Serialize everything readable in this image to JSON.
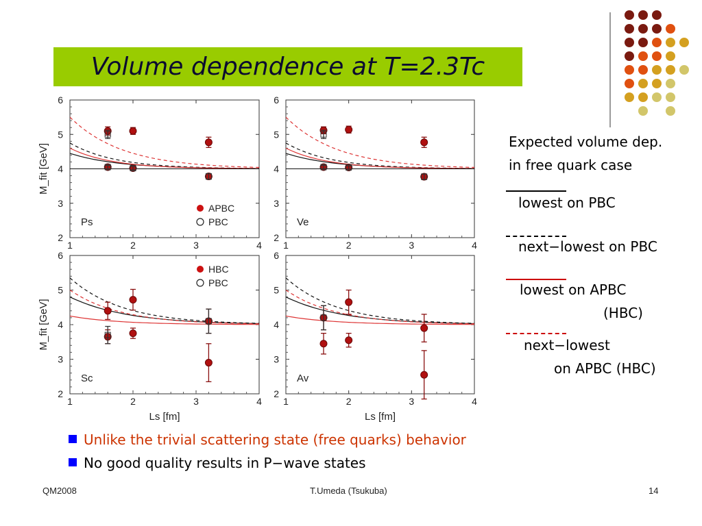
{
  "title": "Volume dependence at T=2.3Tc",
  "legend": {
    "heading_line1": "Expected volume dep.",
    "heading_line2": "in free quark case",
    "items": [
      {
        "dash": "______",
        "label": "lowest on PBC",
        "color": "#000000"
      },
      {
        "dash": "- - - - - -",
        "label": "next−lowest on PBC",
        "color": "#000000"
      },
      {
        "dash": "______",
        "label": "lowest on APBC",
        "label2": "(HBC)",
        "color": "#cc0000"
      },
      {
        "dash": "- - - - - -",
        "label": "next−lowest",
        "label2": "on APBC (HBC)",
        "color": "#cc0000"
      }
    ]
  },
  "bullets": [
    {
      "text": "Unlike the trivial scattering state (free quarks) behavior",
      "color": "#cc3300"
    },
    {
      "text": "No good quality results in P−wave states",
      "color": "#000000"
    }
  ],
  "footer": {
    "left": "QM2008",
    "center": "T.Umeda (Tsukuba)",
    "right": "14"
  },
  "colors": {
    "accent_green": "#99cc00",
    "data_red": "#bb1111",
    "theory_red": "#dd3333"
  },
  "chart_data": [
    {
      "type": "scatter",
      "label": "Ps",
      "xlabel": "",
      "ylabel": "M_fit [GeV]",
      "xlim": [
        1,
        4
      ],
      "ylim": [
        2,
        6
      ],
      "xticks": [
        "1",
        "2",
        "3",
        "4"
      ],
      "yticks": [
        "2",
        "3",
        "4",
        "5",
        "6"
      ],
      "legend": [
        "APBC",
        "PBC"
      ],
      "series": [
        {
          "name": "APBC",
          "marker": "filled",
          "points": [
            [
              1.6,
              5.1,
              0.12
            ],
            [
              1.6,
              4.05,
              0.05
            ],
            [
              2.0,
              5.1,
              0.1
            ],
            [
              2.0,
              4.02,
              0.05
            ],
            [
              3.2,
              4.77,
              0.15
            ],
            [
              3.2,
              3.78,
              0.08
            ]
          ]
        },
        {
          "name": "PBC",
          "marker": "open",
          "points": [
            [
              1.6,
              5.0,
              0.12
            ],
            [
              1.6,
              4.05,
              0.05
            ],
            [
              2.0,
              4.02,
              0.05
            ],
            [
              3.2,
              3.78,
              0.08
            ]
          ]
        }
      ]
    },
    {
      "type": "scatter",
      "label": "Ve",
      "xlabel": "",
      "ylabel": "",
      "xlim": [
        1,
        4
      ],
      "ylim": [
        2,
        6
      ],
      "xticks": [
        "1",
        "2",
        "3",
        "4"
      ],
      "yticks": [
        "2",
        "3",
        "4",
        "5",
        "6"
      ],
      "legend": [],
      "series": [
        {
          "name": "APBC",
          "marker": "filled",
          "points": [
            [
              1.6,
              5.12,
              0.1
            ],
            [
              1.6,
              4.05,
              0.05
            ],
            [
              2.0,
              5.14,
              0.1
            ],
            [
              2.0,
              4.04,
              0.05
            ],
            [
              3.2,
              4.77,
              0.15
            ],
            [
              3.2,
              3.77,
              0.08
            ]
          ]
        },
        {
          "name": "PBC",
          "marker": "open",
          "points": [
            [
              1.6,
              5.0,
              0.12
            ],
            [
              1.6,
              4.05,
              0.05
            ],
            [
              2.0,
              4.04,
              0.05
            ],
            [
              3.2,
              3.77,
              0.08
            ]
          ]
        }
      ]
    },
    {
      "type": "scatter",
      "label": "Sc",
      "xlabel": "Ls [fm]",
      "ylabel": "M_fit [GeV]",
      "xlim": [
        1,
        4
      ],
      "ylim": [
        2,
        6
      ],
      "xticks": [
        "1",
        "2",
        "3",
        "4"
      ],
      "yticks": [
        "2",
        "3",
        "4",
        "5",
        "6"
      ],
      "legend": [
        "HBC",
        "PBC"
      ],
      "series": [
        {
          "name": "HBC",
          "marker": "filled",
          "points": [
            [
              1.6,
              4.4,
              0.25
            ],
            [
              1.6,
              3.65,
              0.2
            ],
            [
              2.0,
              4.72,
              0.3
            ],
            [
              2.0,
              3.75,
              0.15
            ],
            [
              3.2,
              4.1,
              0.35
            ],
            [
              3.2,
              2.9,
              0.55
            ]
          ]
        },
        {
          "name": "PBC",
          "marker": "open",
          "points": [
            [
              1.6,
              3.7,
              0.25
            ],
            [
              3.2,
              4.1,
              0.35
            ]
          ]
        }
      ]
    },
    {
      "type": "scatter",
      "label": "Av",
      "xlabel": "Ls [fm]",
      "ylabel": "",
      "xlim": [
        1,
        4
      ],
      "ylim": [
        2,
        6
      ],
      "xticks": [
        "1",
        "2",
        "3",
        "4"
      ],
      "yticks": [
        "2",
        "3",
        "4",
        "5",
        "6"
      ],
      "legend": [],
      "series": [
        {
          "name": "HBC",
          "marker": "filled",
          "points": [
            [
              1.6,
              4.2,
              0.35
            ],
            [
              1.6,
              3.45,
              0.3
            ],
            [
              2.0,
              4.65,
              0.35
            ],
            [
              2.0,
              3.55,
              0.2
            ],
            [
              3.2,
              3.9,
              0.4
            ],
            [
              3.2,
              2.55,
              0.7
            ]
          ]
        },
        {
          "name": "PBC",
          "marker": "open",
          "points": [
            [
              1.6,
              4.2,
              0.35
            ]
          ]
        }
      ]
    }
  ]
}
